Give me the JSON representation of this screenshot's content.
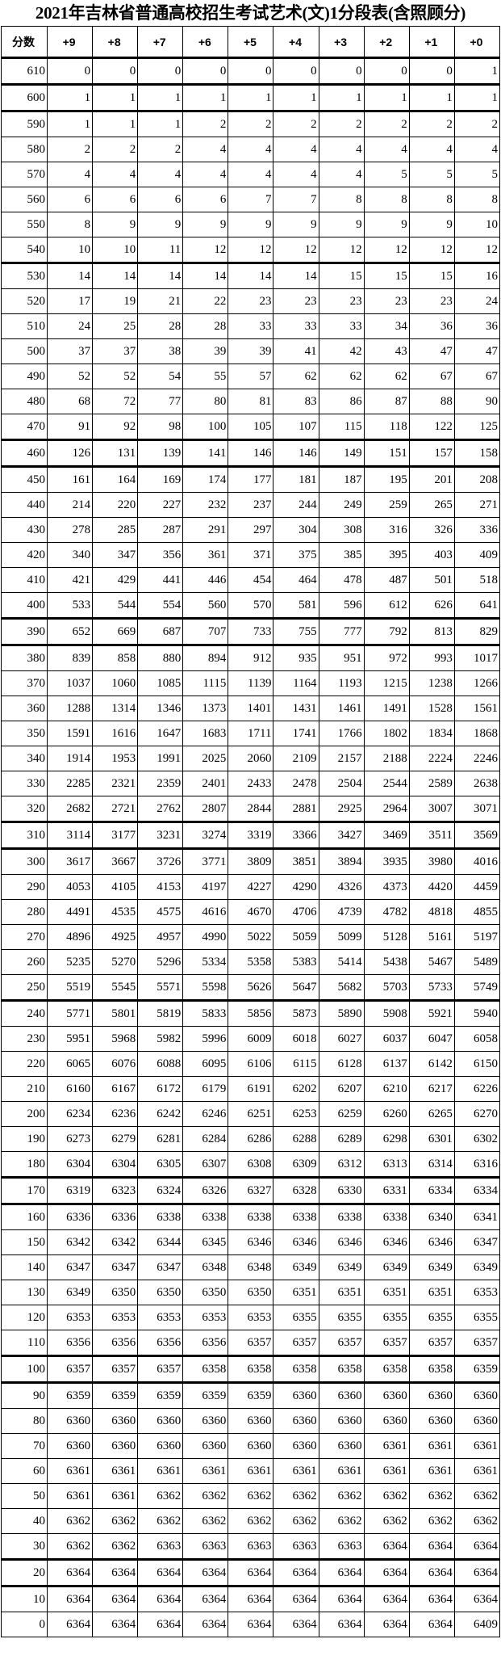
{
  "title": "2021年吉林省普通高校招生考试艺术(文)1分段表(含照顾分)",
  "table": {
    "headers": [
      "分数",
      "+9",
      "+8",
      "+7",
      "+6",
      "+5",
      "+4",
      "+3",
      "+2",
      "+1",
      "+0"
    ],
    "rows": [
      [
        "610",
        "0",
        "0",
        "0",
        "0",
        "0",
        "0",
        "0",
        "0",
        "0",
        "1"
      ],
      [
        "600",
        "1",
        "1",
        "1",
        "1",
        "1",
        "1",
        "1",
        "1",
        "1",
        "1"
      ],
      [
        "590",
        "1",
        "1",
        "1",
        "2",
        "2",
        "2",
        "2",
        "2",
        "2",
        "2"
      ],
      [
        "580",
        "2",
        "2",
        "2",
        "4",
        "4",
        "4",
        "4",
        "4",
        "4",
        "4"
      ],
      [
        "570",
        "4",
        "4",
        "4",
        "4",
        "4",
        "4",
        "4",
        "5",
        "5",
        "5"
      ],
      [
        "560",
        "6",
        "6",
        "6",
        "6",
        "7",
        "7",
        "8",
        "8",
        "8",
        "8"
      ],
      [
        "550",
        "8",
        "9",
        "9",
        "9",
        "9",
        "9",
        "9",
        "9",
        "9",
        "10"
      ],
      [
        "540",
        "10",
        "10",
        "11",
        "12",
        "12",
        "12",
        "12",
        "12",
        "12",
        "12"
      ],
      [
        "530",
        "14",
        "14",
        "14",
        "14",
        "14",
        "14",
        "15",
        "15",
        "15",
        "16"
      ],
      [
        "520",
        "17",
        "19",
        "21",
        "22",
        "23",
        "23",
        "23",
        "23",
        "23",
        "24"
      ],
      [
        "510",
        "24",
        "25",
        "28",
        "28",
        "33",
        "33",
        "33",
        "34",
        "36",
        "36"
      ],
      [
        "500",
        "37",
        "37",
        "38",
        "39",
        "39",
        "41",
        "42",
        "43",
        "47",
        "47"
      ],
      [
        "490",
        "52",
        "52",
        "54",
        "55",
        "57",
        "62",
        "62",
        "62",
        "67",
        "67"
      ],
      [
        "480",
        "68",
        "72",
        "77",
        "80",
        "81",
        "83",
        "86",
        "87",
        "88",
        "90"
      ],
      [
        "470",
        "91",
        "92",
        "98",
        "100",
        "105",
        "107",
        "115",
        "118",
        "122",
        "125"
      ],
      [
        "460",
        "126",
        "131",
        "139",
        "141",
        "146",
        "146",
        "149",
        "151",
        "157",
        "158"
      ],
      [
        "450",
        "161",
        "164",
        "169",
        "174",
        "177",
        "181",
        "187",
        "195",
        "201",
        "208"
      ],
      [
        "440",
        "214",
        "220",
        "227",
        "232",
        "237",
        "244",
        "249",
        "259",
        "265",
        "271"
      ],
      [
        "430",
        "278",
        "285",
        "287",
        "291",
        "297",
        "304",
        "308",
        "316",
        "326",
        "336"
      ],
      [
        "420",
        "340",
        "347",
        "356",
        "361",
        "371",
        "375",
        "385",
        "395",
        "403",
        "409"
      ],
      [
        "410",
        "421",
        "429",
        "441",
        "446",
        "454",
        "464",
        "478",
        "487",
        "501",
        "518"
      ],
      [
        "400",
        "533",
        "544",
        "554",
        "560",
        "570",
        "581",
        "596",
        "612",
        "626",
        "641"
      ],
      [
        "390",
        "652",
        "669",
        "687",
        "707",
        "733",
        "755",
        "777",
        "792",
        "813",
        "829"
      ],
      [
        "380",
        "839",
        "858",
        "880",
        "894",
        "912",
        "935",
        "951",
        "972",
        "993",
        "1017"
      ],
      [
        "370",
        "1037",
        "1060",
        "1085",
        "1115",
        "1139",
        "1164",
        "1193",
        "1215",
        "1238",
        "1266"
      ],
      [
        "360",
        "1288",
        "1314",
        "1346",
        "1373",
        "1401",
        "1431",
        "1461",
        "1491",
        "1528",
        "1561"
      ],
      [
        "350",
        "1591",
        "1616",
        "1647",
        "1683",
        "1711",
        "1741",
        "1766",
        "1802",
        "1834",
        "1868"
      ],
      [
        "340",
        "1914",
        "1953",
        "1991",
        "2025",
        "2060",
        "2109",
        "2157",
        "2188",
        "2224",
        "2246"
      ],
      [
        "330",
        "2285",
        "2321",
        "2359",
        "2401",
        "2433",
        "2478",
        "2504",
        "2544",
        "2589",
        "2638"
      ],
      [
        "320",
        "2682",
        "2721",
        "2762",
        "2807",
        "2844",
        "2881",
        "2925",
        "2964",
        "3007",
        "3071"
      ],
      [
        "310",
        "3114",
        "3177",
        "3231",
        "3274",
        "3319",
        "3366",
        "3427",
        "3469",
        "3511",
        "3569"
      ],
      [
        "300",
        "3617",
        "3667",
        "3726",
        "3771",
        "3809",
        "3851",
        "3894",
        "3935",
        "3980",
        "4016"
      ],
      [
        "290",
        "4053",
        "4105",
        "4153",
        "4197",
        "4227",
        "4290",
        "4326",
        "4373",
        "4420",
        "4459"
      ],
      [
        "280",
        "4491",
        "4535",
        "4575",
        "4616",
        "4670",
        "4706",
        "4739",
        "4782",
        "4818",
        "4855"
      ],
      [
        "270",
        "4896",
        "4925",
        "4957",
        "4990",
        "5022",
        "5059",
        "5099",
        "5128",
        "5161",
        "5197"
      ],
      [
        "260",
        "5235",
        "5270",
        "5296",
        "5334",
        "5358",
        "5383",
        "5414",
        "5438",
        "5467",
        "5489"
      ],
      [
        "250",
        "5519",
        "5545",
        "5571",
        "5598",
        "5626",
        "5647",
        "5682",
        "5703",
        "5733",
        "5749"
      ],
      [
        "240",
        "5771",
        "5801",
        "5819",
        "5833",
        "5856",
        "5873",
        "5890",
        "5908",
        "5921",
        "5940"
      ],
      [
        "230",
        "5951",
        "5968",
        "5982",
        "5996",
        "6009",
        "6018",
        "6027",
        "6037",
        "6047",
        "6058"
      ],
      [
        "220",
        "6065",
        "6076",
        "6088",
        "6095",
        "6106",
        "6115",
        "6128",
        "6137",
        "6142",
        "6150"
      ],
      [
        "210",
        "6160",
        "6167",
        "6172",
        "6179",
        "6191",
        "6202",
        "6207",
        "6210",
        "6217",
        "6226"
      ],
      [
        "200",
        "6234",
        "6236",
        "6242",
        "6246",
        "6251",
        "6253",
        "6259",
        "6260",
        "6265",
        "6270"
      ],
      [
        "190",
        "6273",
        "6279",
        "6281",
        "6284",
        "6286",
        "6288",
        "6289",
        "6298",
        "6301",
        "6302"
      ],
      [
        "180",
        "6304",
        "6304",
        "6305",
        "6307",
        "6308",
        "6309",
        "6312",
        "6313",
        "6314",
        "6316"
      ],
      [
        "170",
        "6319",
        "6323",
        "6324",
        "6326",
        "6327",
        "6328",
        "6330",
        "6331",
        "6334",
        "6334"
      ],
      [
        "160",
        "6336",
        "6336",
        "6338",
        "6338",
        "6338",
        "6338",
        "6338",
        "6338",
        "6340",
        "6341"
      ],
      [
        "150",
        "6342",
        "6342",
        "6344",
        "6345",
        "6346",
        "6346",
        "6346",
        "6346",
        "6346",
        "6347"
      ],
      [
        "140",
        "6347",
        "6347",
        "6347",
        "6348",
        "6348",
        "6349",
        "6349",
        "6349",
        "6349",
        "6349"
      ],
      [
        "130",
        "6349",
        "6350",
        "6350",
        "6350",
        "6350",
        "6351",
        "6351",
        "6351",
        "6351",
        "6353"
      ],
      [
        "120",
        "6353",
        "6353",
        "6353",
        "6353",
        "6353",
        "6355",
        "6355",
        "6355",
        "6355",
        "6355"
      ],
      [
        "110",
        "6356",
        "6356",
        "6356",
        "6356",
        "6357",
        "6357",
        "6357",
        "6357",
        "6357",
        "6357"
      ],
      [
        "100",
        "6357",
        "6357",
        "6357",
        "6358",
        "6358",
        "6358",
        "6358",
        "6358",
        "6358",
        "6359"
      ],
      [
        "90",
        "6359",
        "6359",
        "6359",
        "6359",
        "6359",
        "6360",
        "6360",
        "6360",
        "6360",
        "6360"
      ],
      [
        "80",
        "6360",
        "6360",
        "6360",
        "6360",
        "6360",
        "6360",
        "6360",
        "6360",
        "6360",
        "6360"
      ],
      [
        "70",
        "6360",
        "6360",
        "6360",
        "6360",
        "6360",
        "6360",
        "6360",
        "6361",
        "6361",
        "6361"
      ],
      [
        "60",
        "6361",
        "6361",
        "6361",
        "6361",
        "6361",
        "6361",
        "6361",
        "6361",
        "6361",
        "6361"
      ],
      [
        "50",
        "6361",
        "6361",
        "6362",
        "6362",
        "6362",
        "6362",
        "6362",
        "6362",
        "6362",
        "6362"
      ],
      [
        "40",
        "6362",
        "6362",
        "6362",
        "6362",
        "6362",
        "6362",
        "6362",
        "6362",
        "6362",
        "6362"
      ],
      [
        "30",
        "6362",
        "6362",
        "6363",
        "6363",
        "6363",
        "6363",
        "6363",
        "6364",
        "6364",
        "6364"
      ],
      [
        "20",
        "6364",
        "6364",
        "6364",
        "6364",
        "6364",
        "6364",
        "6364",
        "6364",
        "6364",
        "6364"
      ],
      [
        "10",
        "6364",
        "6364",
        "6364",
        "6364",
        "6364",
        "6364",
        "6364",
        "6364",
        "6364",
        "6364"
      ],
      [
        "0",
        "6364",
        "6364",
        "6364",
        "6364",
        "6364",
        "6364",
        "6364",
        "6364",
        "6364",
        "6409"
      ]
    ]
  }
}
